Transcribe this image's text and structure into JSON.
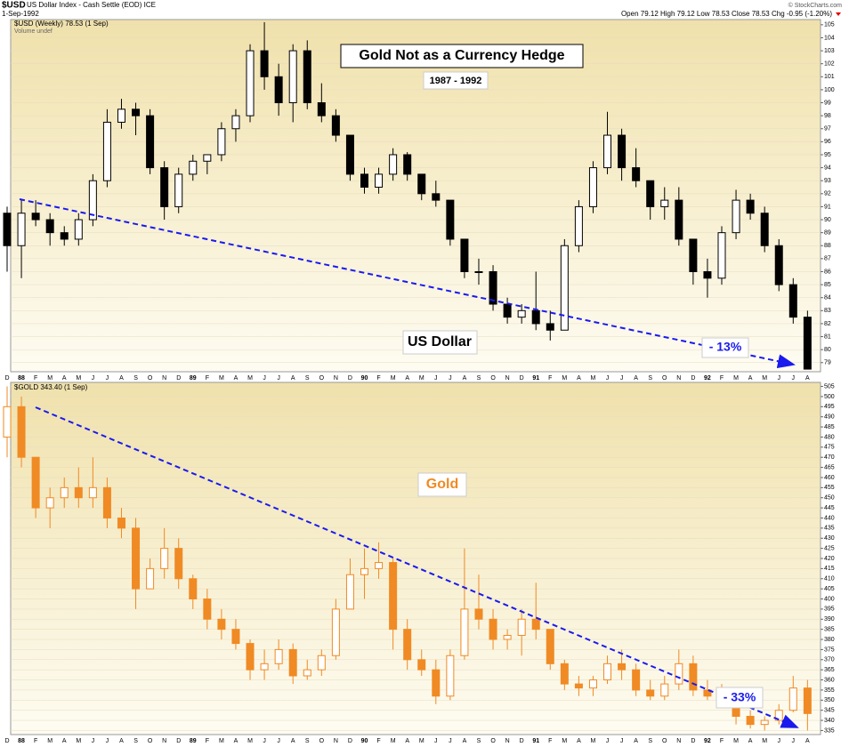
{
  "header": {
    "symbol": "$USD",
    "name": "US Dollar Index - Cash Settle (EOD) ICE",
    "date": "1-Sep-1992",
    "quote": "Open 79.12  High 79.12  Low 78.53  Close 78.53  Chg -0.95 (-1.20%)",
    "source": "© StockCharts.com"
  },
  "chart_data": [
    {
      "type": "candlestick",
      "title": "$USD (Weekly) 78.53 (1 Sep)",
      "subtitle": "Volume undef",
      "color": "#000000",
      "annotations": [
        "Gold Not as a Currency Hedge",
        "1987 - 1992",
        "US Dollar",
        "- 13%"
      ],
      "categories": [
        "D",
        "88",
        "F",
        "M",
        "A",
        "M",
        "J",
        "J",
        "A",
        "S",
        "O",
        "N",
        "D",
        "89",
        "F",
        "M",
        "A",
        "M",
        "J",
        "J",
        "A",
        "S",
        "O",
        "N",
        "D",
        "90",
        "F",
        "M",
        "A",
        "M",
        "J",
        "J",
        "A",
        "S",
        "O",
        "N",
        "D",
        "91",
        "F",
        "M",
        "A",
        "M",
        "J",
        "J",
        "A",
        "S",
        "O",
        "N",
        "D",
        "92",
        "F",
        "M",
        "A",
        "M",
        "J",
        "J",
        "A"
      ],
      "open": [
        90.5,
        88,
        90.5,
        90,
        89,
        88.5,
        90,
        93,
        97.5,
        98.5,
        98,
        94,
        91,
        93.5,
        94.5,
        95,
        97,
        98,
        103,
        101,
        99,
        103,
        99,
        98,
        96.5,
        93.5,
        92.5,
        93.5,
        95,
        93.5,
        92,
        91.5,
        88.5,
        86,
        86,
        83.5,
        82.5,
        83,
        82,
        81.5,
        88,
        91,
        94,
        96.5,
        94,
        93,
        91,
        91.5,
        88.5,
        86,
        85.5,
        89,
        91.5,
        90.5,
        88,
        85,
        82.5
      ],
      "high": [
        91,
        91.5,
        91.5,
        90.5,
        89.5,
        90.5,
        93.5,
        98.5,
        99.3,
        99,
        98.5,
        94.5,
        94,
        95,
        95,
        97.5,
        98.5,
        103.5,
        105.2,
        102,
        103.5,
        103.8,
        100.5,
        98.5,
        96.5,
        94,
        94,
        95.5,
        95.2,
        93.5,
        93,
        91.5,
        88.5,
        87,
        86.5,
        84,
        83.5,
        86,
        83,
        88.5,
        91.5,
        94.5,
        98.3,
        97,
        95.5,
        93,
        92.5,
        92.5,
        88.5,
        87,
        89.5,
        92.3,
        92,
        91,
        88.5,
        85.5,
        83
      ],
      "low": [
        86,
        85.5,
        89.5,
        88,
        88,
        88,
        89.5,
        92.5,
        97,
        96.5,
        93.5,
        90,
        90.5,
        93,
        93.5,
        94.5,
        96,
        97.5,
        100,
        98,
        97.5,
        98.5,
        97.5,
        96,
        93,
        92,
        92,
        93,
        93,
        91.5,
        91,
        88,
        85.5,
        85,
        83,
        82,
        82,
        81.5,
        80.7,
        81.5,
        87.5,
        90.5,
        93.5,
        93,
        92.5,
        90,
        90,
        88,
        85,
        84,
        85,
        88.5,
        90,
        87.5,
        84.5,
        82,
        78.5
      ],
      "close": [
        88,
        90.5,
        90,
        89,
        88.5,
        90,
        93,
        97.5,
        98.5,
        98,
        94,
        91,
        93.5,
        94.5,
        95,
        97,
        98,
        103,
        101,
        99,
        103,
        99,
        98,
        96.5,
        93.5,
        92.5,
        93.5,
        95,
        93.5,
        92,
        91.5,
        88.5,
        86,
        86,
        83.5,
        82.5,
        83,
        82,
        81.5,
        88,
        91,
        94,
        96.5,
        94,
        93,
        91,
        91.5,
        88.5,
        86,
        85.5,
        89,
        91.5,
        90.5,
        88,
        85,
        82.5,
        78.5
      ],
      "ylim": [
        78.3,
        105.4
      ],
      "yticks": [
        79,
        80,
        81,
        82,
        83,
        84,
        85,
        86,
        87,
        88,
        89,
        90,
        91,
        92,
        93,
        94,
        95,
        96,
        97,
        98,
        99,
        100,
        101,
        102,
        103,
        104,
        105
      ],
      "grid": true
    },
    {
      "type": "candlestick",
      "title": "$GOLD 343.40 (1 Sep)",
      "color": "#f08a24",
      "annotations": [
        "Gold",
        "- 33%"
      ],
      "categories": [
        "D",
        "88",
        "F",
        "M",
        "A",
        "M",
        "J",
        "J",
        "A",
        "S",
        "O",
        "N",
        "D",
        "89",
        "F",
        "M",
        "A",
        "M",
        "J",
        "J",
        "A",
        "S",
        "O",
        "N",
        "D",
        "90",
        "F",
        "M",
        "A",
        "M",
        "J",
        "J",
        "A",
        "S",
        "O",
        "N",
        "D",
        "91",
        "F",
        "M",
        "A",
        "M",
        "J",
        "J",
        "A",
        "S",
        "O",
        "N",
        "D",
        "92",
        "F",
        "M",
        "A",
        "M",
        "J",
        "J",
        "A"
      ],
      "open": [
        480,
        495,
        470,
        445,
        450,
        455,
        450,
        455,
        440,
        435,
        405,
        415,
        425,
        410,
        400,
        390,
        385,
        378,
        365,
        368,
        375,
        362,
        365,
        372,
        395,
        412,
        415,
        418,
        385,
        370,
        365,
        352,
        372,
        395,
        390,
        380,
        382,
        390,
        385,
        368,
        358,
        356,
        360,
        368,
        365,
        355,
        352,
        358,
        368,
        355,
        352,
        350,
        342,
        338,
        340,
        345,
        356
      ],
      "high": [
        505,
        500,
        470,
        455,
        460,
        465,
        470,
        460,
        445,
        440,
        420,
        435,
        430,
        412,
        405,
        395,
        390,
        380,
        375,
        380,
        378,
        370,
        375,
        400,
        420,
        425,
        428,
        420,
        390,
        375,
        370,
        375,
        425,
        412,
        395,
        385,
        395,
        408,
        385,
        370,
        362,
        362,
        372,
        375,
        368,
        360,
        362,
        375,
        372,
        360,
        358,
        352,
        345,
        342,
        348,
        362,
        360
      ],
      "low": [
        470,
        465,
        440,
        435,
        445,
        445,
        445,
        435,
        430,
        395,
        405,
        410,
        405,
        395,
        385,
        380,
        375,
        360,
        360,
        365,
        358,
        360,
        362,
        370,
        395,
        400,
        410,
        375,
        365,
        362,
        348,
        350,
        370,
        385,
        375,
        375,
        372,
        380,
        365,
        355,
        352,
        352,
        358,
        360,
        352,
        350,
        350,
        355,
        352,
        350,
        346,
        338,
        336,
        335,
        338,
        344,
        335
      ],
      "close": [
        495,
        470,
        445,
        450,
        455,
        450,
        455,
        440,
        435,
        405,
        415,
        425,
        410,
        400,
        390,
        385,
        378,
        365,
        368,
        375,
        362,
        365,
        372,
        395,
        412,
        415,
        418,
        385,
        370,
        365,
        352,
        372,
        395,
        390,
        380,
        382,
        390,
        385,
        368,
        358,
        356,
        360,
        368,
        365,
        355,
        352,
        358,
        368,
        355,
        352,
        350,
        342,
        338,
        340,
        345,
        356,
        343.4
      ],
      "ylim": [
        333,
        507
      ],
      "yticks": [
        335,
        340,
        345,
        350,
        355,
        360,
        365,
        370,
        375,
        380,
        385,
        390,
        395,
        400,
        405,
        410,
        415,
        420,
        425,
        430,
        435,
        440,
        445,
        450,
        455,
        460,
        465,
        470,
        475,
        480,
        485,
        490,
        495,
        500,
        505
      ],
      "grid": true
    }
  ]
}
